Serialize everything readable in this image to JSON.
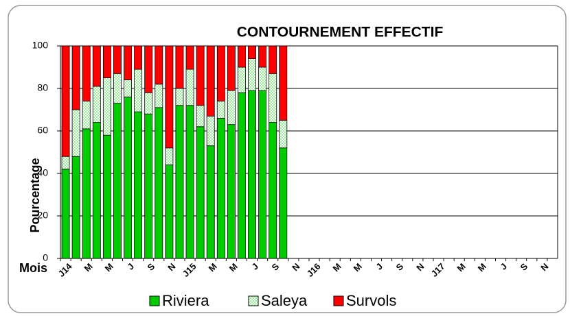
{
  "chart_data": {
    "type": "stacked_bar",
    "title": "CONTOURNEMENT  EFFECTIF",
    "x_label": "Mois",
    "y_label": "Pourcentage",
    "categories": [
      "J14",
      null,
      "M",
      null,
      "M",
      null,
      "J",
      null,
      "S",
      null,
      "N",
      null,
      "J15",
      null,
      "M",
      null,
      "M",
      null,
      "J",
      null,
      "S",
      null,
      "N",
      null,
      "J16",
      null,
      "M",
      null,
      "M",
      null,
      "J",
      null,
      "S",
      null,
      "N",
      null,
      "J17",
      null,
      "M",
      null,
      "M",
      null,
      "J",
      null,
      "S",
      null,
      "N",
      null
    ],
    "series": [
      {
        "name": "Riviera",
        "color": "#00cc00",
        "values": [
          42,
          48,
          61,
          64,
          58,
          73,
          76,
          69,
          68,
          71,
          44,
          72,
          72,
          62,
          53,
          66,
          63,
          78,
          79,
          79,
          64,
          52,
          null,
          null,
          null,
          null,
          null,
          null,
          null,
          null,
          null,
          null,
          null,
          null,
          null,
          null,
          null,
          null,
          null,
          null,
          null,
          null,
          null,
          null,
          null,
          null,
          null,
          null
        ]
      },
      {
        "name": "Saleya",
        "color": "#99ee99",
        "values": [
          6,
          22,
          13,
          17,
          27,
          14,
          8,
          20,
          10,
          11,
          8,
          8,
          17,
          10,
          14,
          8,
          16,
          12,
          15,
          11,
          23,
          13,
          null,
          null,
          null,
          null,
          null,
          null,
          null,
          null,
          null,
          null,
          null,
          null,
          null,
          null,
          null,
          null,
          null,
          null,
          null,
          null,
          null,
          null,
          null,
          null,
          null,
          null
        ]
      },
      {
        "name": "Survols",
        "color": "#ff0000",
        "values": [
          52,
          30,
          26,
          19,
          15,
          13,
          16,
          11,
          22,
          18,
          48,
          20,
          11,
          28,
          33,
          26,
          21,
          10,
          6,
          10,
          13,
          35,
          null,
          null,
          null,
          null,
          null,
          null,
          null,
          null,
          null,
          null,
          null,
          null,
          null,
          null,
          null,
          null,
          null,
          null,
          null,
          null,
          null,
          null,
          null,
          null,
          null,
          null
        ]
      }
    ],
    "ylim": [
      0,
      100
    ],
    "yticks": [
      0,
      20,
      40,
      60,
      80,
      100
    ],
    "grid": true,
    "legend": "bottom"
  }
}
